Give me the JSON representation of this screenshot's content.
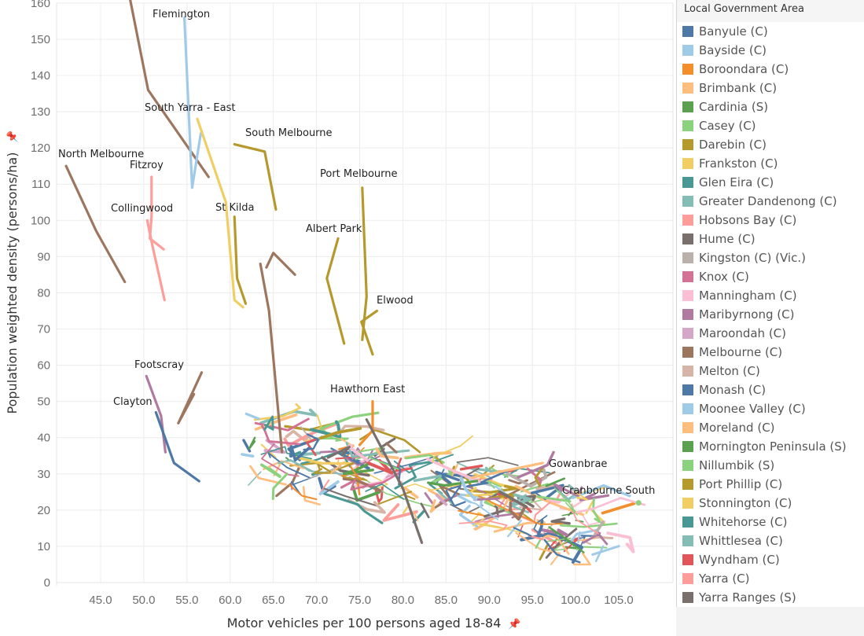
{
  "chart_data": {
    "type": "line",
    "title": "",
    "xlabel": "Motor vehicles per 100 persons aged 18-84",
    "ylabel": "Population weighted density (persons/ha)",
    "xlim": [
      40.0,
      109.0
    ],
    "ylim": [
      0,
      163
    ],
    "xticks": [
      "45.0",
      "50.0",
      "55.0",
      "60.0",
      "65.0",
      "70.0",
      "75.0",
      "80.0",
      "85.0",
      "90.0",
      "95.0",
      "100.0",
      "105.0"
    ],
    "xtick_values": [
      45,
      50,
      55,
      60,
      65,
      70,
      75,
      80,
      85,
      90,
      95,
      100,
      105
    ],
    "yticks": [
      "0",
      "10",
      "20",
      "30",
      "40",
      "50",
      "60",
      "70",
      "80",
      "90",
      "100",
      "110",
      "120",
      "130",
      "140",
      "150",
      "160"
    ],
    "ytick_values": [
      0,
      10,
      20,
      30,
      40,
      50,
      60,
      70,
      80,
      90,
      100,
      110,
      120,
      130,
      140,
      150,
      160
    ],
    "grid": true,
    "legend_position": "right",
    "legend_title": "Local Government Area",
    "series": [
      {
        "name": "Banyule (C)",
        "color": "#4e79a7"
      },
      {
        "name": "Bayside (C)",
        "color": "#a0cbe8"
      },
      {
        "name": "Boroondara (C)",
        "color": "#f28e2b"
      },
      {
        "name": "Brimbank (C)",
        "color": "#ffbe7d"
      },
      {
        "name": "Cardinia (S)",
        "color": "#59a14f"
      },
      {
        "name": "Casey (C)",
        "color": "#8cd17d"
      },
      {
        "name": "Darebin (C)",
        "color": "#b6992d"
      },
      {
        "name": "Frankston (C)",
        "color": "#f1ce63"
      },
      {
        "name": "Glen Eira (C)",
        "color": "#499894"
      },
      {
        "name": "Greater Dandenong (C)",
        "color": "#86bcb6"
      },
      {
        "name": "Hobsons Bay (C)",
        "color": "#ff9d9a"
      },
      {
        "name": "Hume (C)",
        "color": "#79706e"
      },
      {
        "name": "Kingston (C) (Vic.)",
        "color": "#bab0ac"
      },
      {
        "name": "Knox (C)",
        "color": "#d37295"
      },
      {
        "name": "Manningham (C)",
        "color": "#fabfd2"
      },
      {
        "name": "Maribyrnong (C)",
        "color": "#b07aa1"
      },
      {
        "name": "Maroondah (C)",
        "color": "#d4a6c8"
      },
      {
        "name": "Melbourne (C)",
        "color": "#9d7660"
      },
      {
        "name": "Melton (C)",
        "color": "#d7b5a6"
      },
      {
        "name": "Monash (C)",
        "color": "#4e79a7"
      },
      {
        "name": "Moonee Valley (C)",
        "color": "#a0cbe8"
      },
      {
        "name": "Moreland (C)",
        "color": "#ffbe7d"
      },
      {
        "name": "Mornington Peninsula (S)",
        "color": "#59a14f"
      },
      {
        "name": "Nillumbik (S)",
        "color": "#8cd17d"
      },
      {
        "name": "Port Phillip (C)",
        "color": "#b6992d"
      },
      {
        "name": "Stonnington (C)",
        "color": "#f1ce63"
      },
      {
        "name": "Whitehorse (C)",
        "color": "#499894"
      },
      {
        "name": "Whittlesea (C)",
        "color": "#86bcb6"
      },
      {
        "name": "Wyndham (C)",
        "color": "#e15759"
      },
      {
        "name": "Yarra (C)",
        "color": "#ff9d9a"
      },
      {
        "name": "Yarra Ranges (S)",
        "color": "#79706e"
      }
    ],
    "trajectories": [
      {
        "label": "North Melbourne",
        "series": "Melbourne (C)",
        "points": [
          [
            41.0,
            115
          ],
          [
            44.5,
            97
          ],
          [
            47.8,
            83
          ]
        ]
      },
      {
        "label": "",
        "series": "Melbourne (C)",
        "points": [
          [
            48.0,
            166
          ],
          [
            50.5,
            136
          ],
          [
            57.5,
            112
          ]
        ]
      },
      {
        "label": "Flemington",
        "series": "Moonee Valley (C)",
        "points": [
          [
            54.7,
            156
          ],
          [
            55.6,
            109
          ],
          [
            56.6,
            124
          ]
        ]
      },
      {
        "label": "South Yarra - East",
        "series": "Stonnington (C)",
        "points": [
          [
            56.2,
            128
          ],
          [
            59.5,
            105
          ],
          [
            60.5,
            78
          ],
          [
            61.5,
            76
          ]
        ]
      },
      {
        "label": "South Melbourne",
        "series": "Port Phillip (C)",
        "points": [
          [
            60.5,
            121
          ],
          [
            64.0,
            119
          ],
          [
            65.3,
            103
          ]
        ]
      },
      {
        "label": "Port Melbourne",
        "series": "Port Phillip (C)",
        "points": [
          [
            75.3,
            109
          ],
          [
            75.8,
            79
          ],
          [
            75.3,
            67
          ]
        ]
      },
      {
        "label": "Albert Park",
        "series": "Port Phillip (C)",
        "points": [
          [
            72.5,
            95
          ],
          [
            71.2,
            84
          ],
          [
            73.2,
            66
          ]
        ]
      },
      {
        "label": "Elwood",
        "series": "Port Phillip (C)",
        "points": [
          [
            77.0,
            75
          ],
          [
            75.2,
            72
          ],
          [
            76.5,
            63
          ]
        ]
      },
      {
        "label": "St Kilda",
        "series": "Port Phillip (C)",
        "points": [
          [
            60.5,
            101
          ],
          [
            60.8,
            84
          ],
          [
            61.8,
            77
          ]
        ]
      },
      {
        "label": "Fitzroy",
        "series": "Yarra (C)",
        "points": [
          [
            50.9,
            112
          ],
          [
            50.9,
            101
          ],
          [
            50.7,
            95
          ],
          [
            52.3,
            92
          ]
        ]
      },
      {
        "label": "Collingwood",
        "series": "Yarra (C)",
        "points": [
          [
            50.4,
            100
          ],
          [
            51.0,
            93
          ],
          [
            52.4,
            78
          ]
        ]
      },
      {
        "label": "Footscray",
        "series": "Maribyrnong (C)",
        "points": [
          [
            50.3,
            57
          ],
          [
            52.0,
            46
          ],
          [
            52.5,
            36
          ]
        ]
      },
      {
        "label": "",
        "series": "Melbourne (C)",
        "points": [
          [
            56.7,
            58
          ],
          [
            54.0,
            44
          ],
          [
            55.8,
            52
          ]
        ]
      },
      {
        "label": "Clayton",
        "series": "Monash (C)",
        "points": [
          [
            51.4,
            47
          ],
          [
            53.5,
            33
          ],
          [
            56.4,
            28
          ]
        ]
      },
      {
        "label": "Hawthorn East",
        "series": "Boroondara (C)",
        "points": [
          [
            76.5,
            50
          ],
          [
            76.5,
            42
          ],
          [
            75.0,
            38
          ]
        ]
      },
      {
        "label": "",
        "series": "Melbourne (C)",
        "points": [
          [
            63.5,
            88
          ],
          [
            64.5,
            75
          ],
          [
            66.0,
            36
          ]
        ]
      },
      {
        "label": "",
        "series": "Melbourne (C)",
        "points": [
          [
            64.2,
            87
          ],
          [
            65.0,
            91
          ],
          [
            67.5,
            85
          ]
        ]
      },
      {
        "label": "",
        "series": "Yarra Ranges (S)",
        "points": [
          [
            75.8,
            45
          ],
          [
            80.0,
            26
          ],
          [
            82.2,
            11
          ]
        ]
      },
      {
        "label": "Gowanbrae",
        "series": "Moreland (C)",
        "points": [
          [
            88.0,
            29
          ],
          [
            96.2,
            33
          ]
        ]
      },
      {
        "label": "Cranbourne South",
        "series": "Casey (C)",
        "points": [
          [
            107.3,
            22
          ]
        ]
      }
    ]
  }
}
